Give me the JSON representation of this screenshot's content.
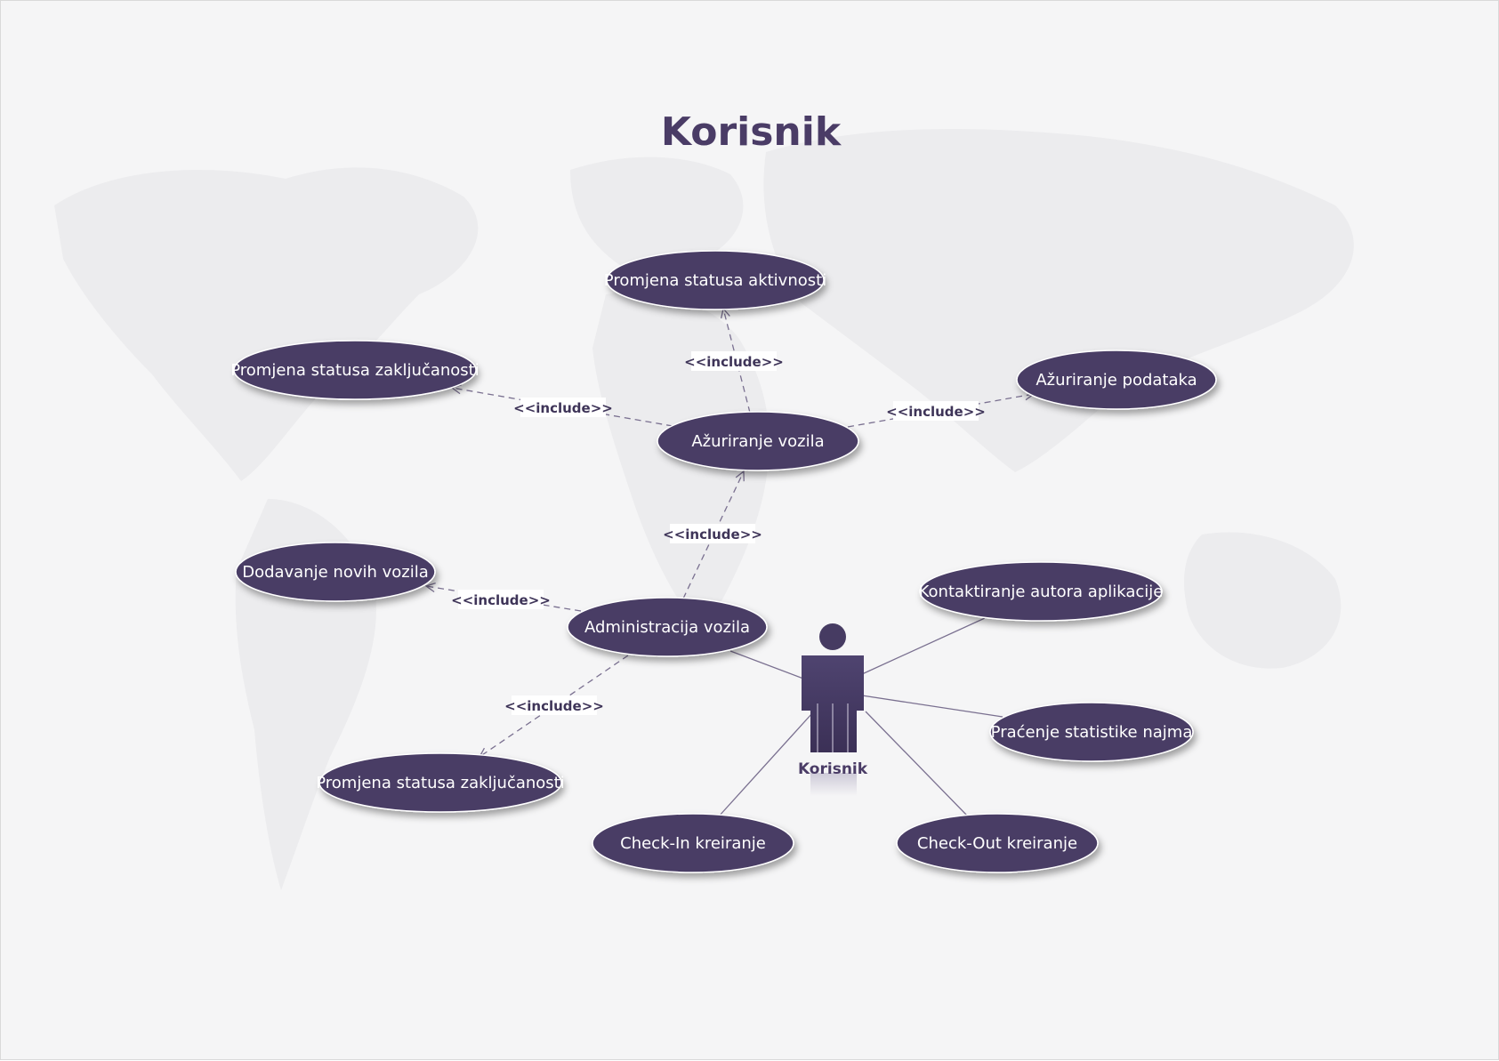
{
  "title": "Korisnik",
  "actor": {
    "label": "Korisnik"
  },
  "use_cases": {
    "promjena_statusa_aktivnosti": "Promjena statusa aktivnosti",
    "promjena_statusa_zakljucanosti_1": "Promjena statusa zaključanosti",
    "azuriranje_podataka": "Ažuriranje podataka",
    "azuriranje_vozila": "Ažuriranje vozila",
    "dodavanje_novih_vozila": "Dodavanje novih vozila",
    "administracija_vozila": "Administracija vozila",
    "kontaktiranje_autora": "Kontaktiranje autora aplikacije",
    "pracenje_statistike": "Praćenje statistike najma",
    "promjena_statusa_zakljucanosti_2": "Promjena statusa zaključanosti",
    "check_in": "Check-In kreiranje",
    "check_out": "Check-Out kreiranje"
  },
  "include_label": "<<include>>",
  "colors": {
    "ellipse_fill": "#493d65",
    "ellipse_text": "#ffffff",
    "title": "#4a3c66",
    "line": "#7a7090",
    "background": "#f5f5f6",
    "world_map": "#ececee"
  }
}
